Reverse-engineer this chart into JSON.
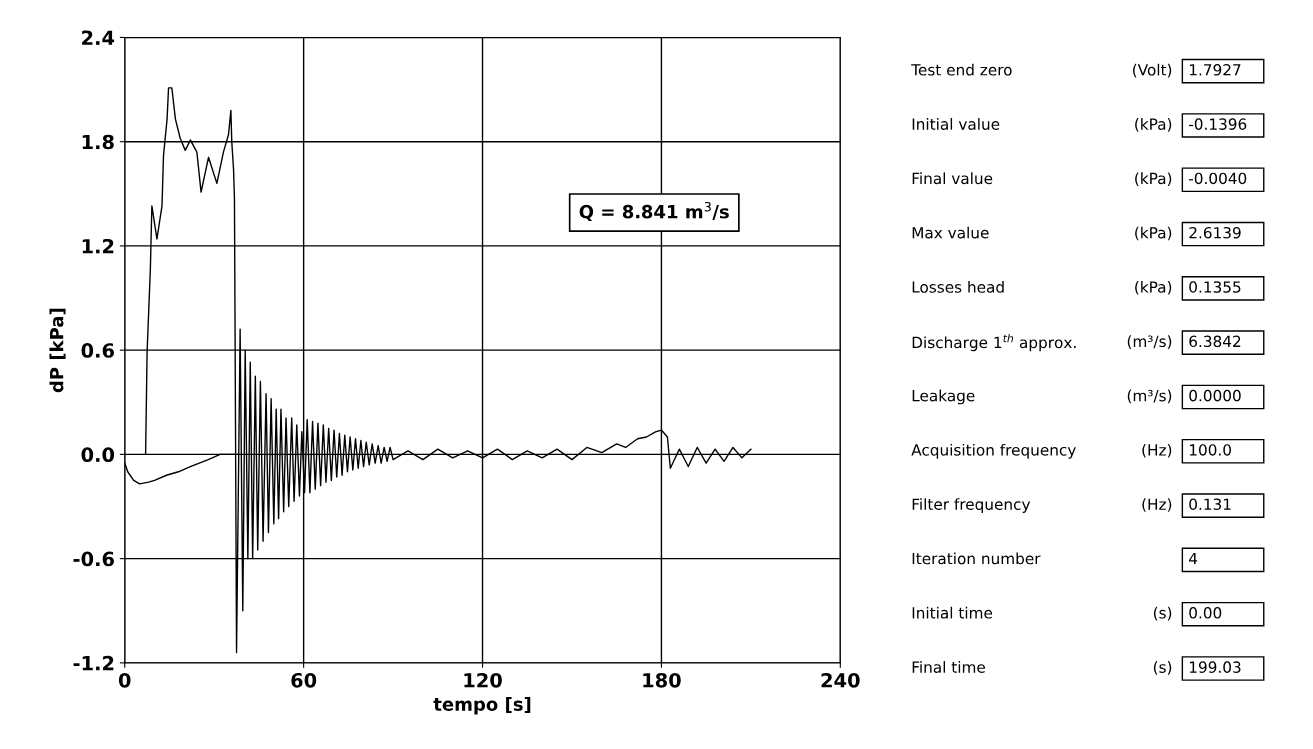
{
  "chart_data": [
    {
      "type": "line",
      "xlabel": "tempo [s]",
      "ylabel": "dP [kPa]",
      "xlim": [
        0,
        240
      ],
      "ylim": [
        -1.2,
        2.4
      ],
      "xticks": [
        0,
        60,
        120,
        180,
        240
      ],
      "yticks": [
        -1.2,
        -0.6,
        {
          "value": 0,
          "label": "0.0"
        },
        0.6,
        1.2,
        1.8,
        2.4
      ],
      "grid": true,
      "legend": false,
      "marker": "none",
      "line_style": "solid",
      "annotations": [
        "Q = 8.841 m$^{3}$/s"
      ],
      "series": [
        {
          "color": "#000000",
          "x": [
            7,
            7.5,
            8.6,
            9.1,
            10.8,
            12.5,
            13.0,
            14.2,
            14.7,
            15.8,
            17.0,
            18.6,
            20.3,
            22.0,
            24.2,
            25.6,
            28.1,
            30.9,
            33.1,
            34.8,
            35.6,
            35.9,
            36.5,
            36.8,
            37.5,
            38.7,
            39.6,
            40.4,
            41.3,
            42.1,
            42.9,
            43.8,
            44.6,
            45.5,
            46.4,
            47.4,
            48.2,
            49.1,
            50.0,
            50.8,
            51.6,
            52.4,
            53.3,
            54.1,
            55.0,
            56.0,
            56.8,
            57.7,
            58.6,
            59.4,
            60.3,
            61.2,
            62.1,
            63.0,
            63.9,
            64.8,
            65.7,
            66.6,
            67.5,
            68.4,
            69.3,
            70.2,
            71.1,
            72.0,
            72.9,
            73.8,
            74.7,
            75.6,
            76.5,
            77.4,
            78.3,
            79.2,
            80.1,
            81,
            82,
            83,
            84,
            85,
            86,
            87,
            88,
            89,
            90,
            95,
            100,
            105,
            110,
            115,
            120,
            125,
            130,
            135,
            140,
            145,
            150,
            155,
            160,
            165,
            168,
            172,
            175,
            178,
            180,
            182,
            183,
            186,
            189,
            192,
            195,
            198,
            201,
            204,
            207,
            210
          ],
          "values": [
            0.0,
            0.59,
            1.07,
            1.43,
            1.24,
            1.43,
            1.72,
            1.93,
            2.11,
            2.11,
            1.93,
            1.82,
            1.75,
            1.81,
            1.74,
            1.51,
            1.71,
            1.56,
            1.74,
            1.84,
            1.98,
            1.8,
            1.64,
            1.47,
            -1.14,
            0.72,
            -0.9,
            0.6,
            -0.6,
            0.53,
            -0.6,
            0.45,
            -0.55,
            0.42,
            -0.5,
            0.35,
            -0.45,
            0.32,
            -0.4,
            0.26,
            -0.37,
            0.26,
            -0.33,
            0.21,
            -0.3,
            0.21,
            -0.27,
            0.17,
            -0.24,
            0.13,
            -0.22,
            0.2,
            -0.22,
            0.19,
            -0.2,
            0.18,
            -0.18,
            0.17,
            -0.16,
            0.15,
            -0.15,
            0.14,
            -0.13,
            0.12,
            -0.12,
            0.11,
            -0.1,
            0.1,
            -0.09,
            0.09,
            -0.08,
            0.08,
            -0.07,
            0.07,
            -0.06,
            0.06,
            -0.05,
            0.05,
            -0.05,
            0.04,
            -0.04,
            0.04,
            -0.03,
            0.02,
            -0.03,
            0.03,
            -0.02,
            0.02,
            -0.02,
            0.03,
            -0.03,
            0.02,
            -0.02,
            0.03,
            -0.03,
            0.04,
            0.01,
            0.06,
            0.04,
            0.09,
            0.1,
            0.13,
            0.14,
            0.1,
            -0.08,
            0.03,
            -0.07,
            0.04,
            -0.05,
            0.03,
            -0.04,
            0.04,
            -0.02,
            0.03
          ]
        },
        {
          "color": "#000000",
          "x": [
            0,
            1,
            3,
            5,
            8,
            10,
            14,
            18,
            22,
            25,
            28,
            32,
            38
          ],
          "values": [
            -0.05,
            -0.1,
            -0.15,
            -0.17,
            -0.16,
            -0.15,
            -0.12,
            -0.1,
            -0.07,
            -0.05,
            -0.03,
            0.0,
            0.0
          ]
        }
      ]
    },
    {
      "type": "other",
      "annotations": [
        "Test end zero",
        "(Volt)",
        "1.7927",
        "Initial value",
        "(kPa)",
        "-0.1396",
        "Final value",
        "(kPa)",
        "-0.0040",
        "Max value",
        "(kPa)",
        "2.6139",
        "Losses head",
        "(kPa)",
        "0.1355",
        "Discharge 1$^{th}$ approx.",
        "(m³/s)",
        "6.3842",
        "Leakage",
        "(m³/s)",
        "0.0000",
        "Acquisition frequency",
        "(Hz)",
        "100.0",
        "Filter frequency",
        "(Hz)",
        "0.131",
        "Iteration number",
        null,
        "4",
        "Initial time",
        "(s)",
        "0.00",
        "Final time",
        "(s)",
        "199.03"
      ]
    }
  ]
}
